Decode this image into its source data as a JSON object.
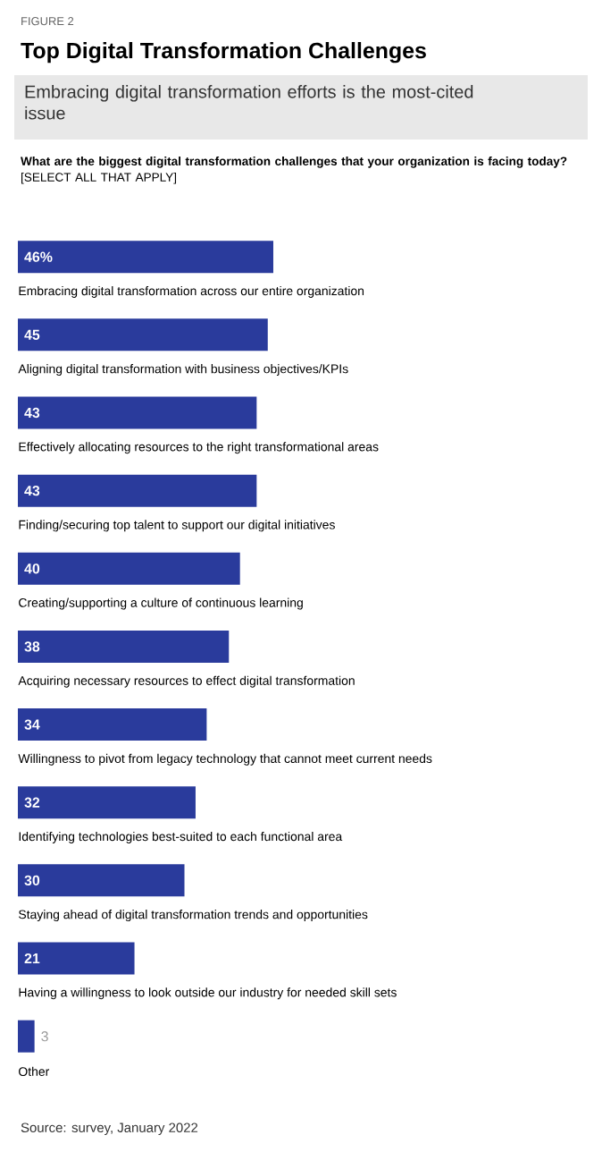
{
  "chart_data": {
    "type": "bar",
    "orientation": "horizontal",
    "title": "Top Digital Transformation Challenges",
    "subtitle": "Embracing digital transformation efforts is the most-cited issue",
    "annotations": [
      "FIGURE 2",
      "**What are the biggest digital transformation challenges that your organization is facing today?** [SELECT ALL THAT APPLY]",
      "Source: survey, January 2022"
    ],
    "categories": [
      "Embracing digital transformation across our entire organization",
      "Aligning digital transformation with business objectives/KPIs",
      "Effectively allocating resources to the right transformational areas",
      "Finding/securing top talent to support our digital initiatives",
      "Creating/supporting a culture of continuous learning",
      "Acquiring necessary resources to effect digital transformation",
      "Willingness to pivot from legacy technology that cannot meet current needs",
      "Identifying technologies best-suited to each functional area",
      "Staying ahead of digital transformation trends and opportunities",
      "Having a willingness to look outside our industry for needed skill sets",
      "Other"
    ],
    "values": [
      46,
      45,
      43,
      43,
      40,
      38,
      34,
      32,
      30,
      21,
      3
    ],
    "value_labels": [
      "46%",
      "45",
      "43",
      "43",
      "40",
      "38",
      "34",
      "32",
      "30",
      "21",
      "3"
    ],
    "color": "#2a3b9c"
  }
}
